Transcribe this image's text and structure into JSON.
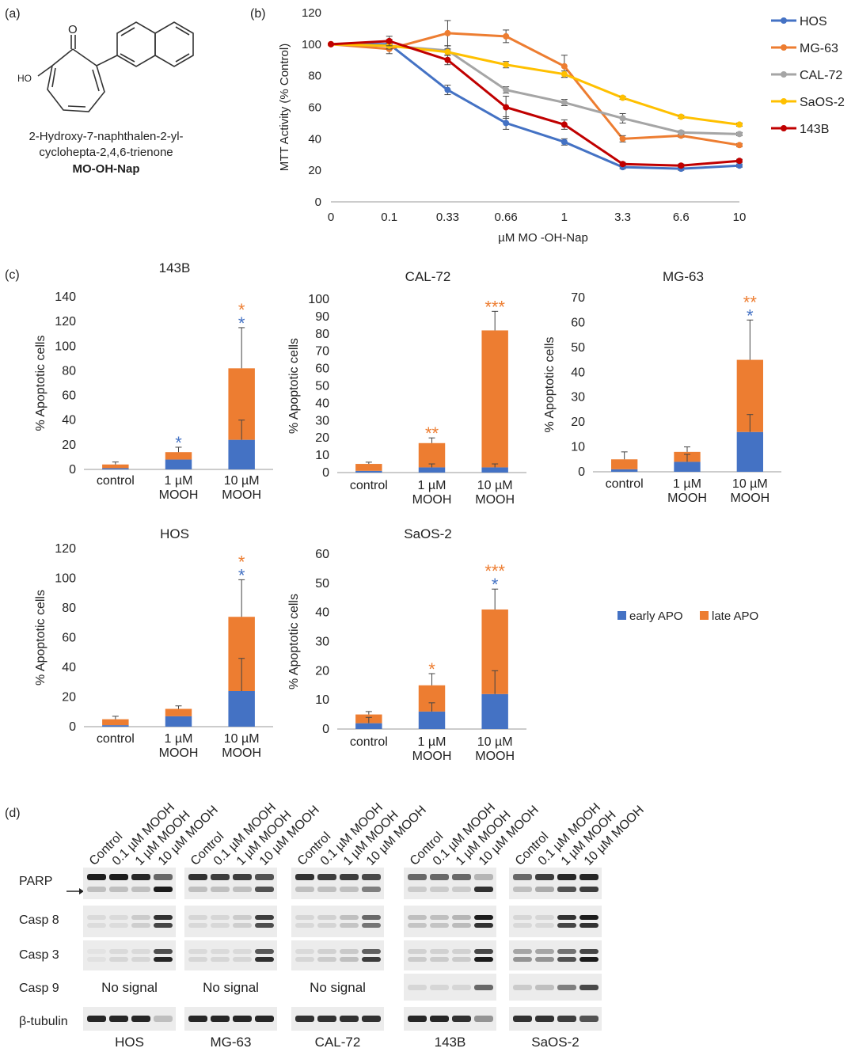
{
  "panel_labels": {
    "a": "(a)",
    "b": "(b)",
    "c": "(c)",
    "d": "(d)"
  },
  "molecule": {
    "name_line1": "2-Hydroxy-7-naphthalen-2-yl-",
    "name_line2": "cyclohepta-2,4,6-trienone",
    "code": "MO-OH-Nap",
    "ho_label": "HO",
    "o_label": "O"
  },
  "colors": {
    "HOS": "#4472C4",
    "MG-63": "#ED7D31",
    "CAL-72": "#A5A5A5",
    "SaOS-2": "#FFC000",
    "143B": "#C00000",
    "early": "#4472C4",
    "late": "#ED7D31"
  },
  "chart_data": [
    {
      "type": "line",
      "panel": "b",
      "title": "",
      "xlabel": "µM MO -OH-Nap",
      "ylabel": "MTT Activity (% Control)",
      "categories": [
        "0",
        "0.1",
        "0.33",
        "0.66",
        "1",
        "3.3",
        "6.6",
        "10"
      ],
      "ylim": [
        0,
        120
      ],
      "yticks": [
        "0",
        "20",
        "40",
        "60",
        "80",
        "100",
        "120"
      ],
      "series": [
        {
          "name": "HOS",
          "values": [
            100,
            100,
            71,
            50,
            38,
            22,
            21,
            23
          ],
          "err": [
            0,
            3,
            3,
            4,
            2,
            1,
            1,
            1
          ]
        },
        {
          "name": "MG-63",
          "values": [
            100,
            97,
            107,
            105,
            86,
            40,
            42,
            36
          ],
          "err": [
            0,
            3,
            8,
            4,
            7,
            2,
            1,
            1
          ]
        },
        {
          "name": "CAL-72",
          "values": [
            100,
            99,
            96,
            71,
            63,
            53,
            44,
            43
          ],
          "err": [
            0,
            2,
            3,
            2,
            2,
            3,
            1,
            1
          ]
        },
        {
          "name": "SaOS-2",
          "values": [
            100,
            99,
            95,
            87,
            81,
            66,
            54,
            49
          ],
          "err": [
            0,
            2,
            2,
            2,
            2,
            1,
            1,
            1
          ]
        },
        {
          "name": "143B",
          "values": [
            100,
            102,
            90,
            60,
            49,
            24,
            23,
            26
          ],
          "err": [
            0,
            3,
            3,
            7,
            3,
            1,
            1,
            1
          ]
        }
      ]
    },
    {
      "type": "bar",
      "stacked": true,
      "title": "143B",
      "ylabel": "% Apoptotic cells",
      "categories": [
        [
          "control"
        ],
        [
          "1 µM",
          "MOOH"
        ],
        [
          "10 µM",
          "MOOH"
        ]
      ],
      "ylim": [
        0,
        140
      ],
      "ytick_step": 20,
      "series": [
        {
          "name": "early APO",
          "values": [
            1,
            8,
            24
          ]
        },
        {
          "name": "late APO",
          "values": [
            3,
            6,
            58
          ]
        }
      ],
      "errors": [
        2,
        4,
        33
      ],
      "early_errors": [
        0,
        0,
        16
      ],
      "stars": [
        {
          "cat": 1,
          "lines": [
            {
              "text": "*",
              "color": "blue"
            }
          ]
        },
        {
          "cat": 2,
          "lines": [
            {
              "text": "*",
              "color": "orange"
            },
            {
              "text": "*",
              "color": "blue"
            }
          ]
        }
      ]
    },
    {
      "type": "bar",
      "stacked": true,
      "title": "CAL-72",
      "ylabel": "% Apoptotic cells",
      "categories": [
        [
          "control"
        ],
        [
          "1 µM",
          "MOOH"
        ],
        [
          "10 µM",
          "MOOH"
        ]
      ],
      "ylim": [
        0,
        100
      ],
      "ytick_step": 10,
      "series": [
        {
          "name": "early APO",
          "values": [
            1,
            3,
            3
          ]
        },
        {
          "name": "late APO",
          "values": [
            4,
            14,
            79
          ]
        }
      ],
      "errors": [
        1,
        3,
        11
      ],
      "early_errors": [
        0,
        2,
        2
      ],
      "stars": [
        {
          "cat": 1,
          "lines": [
            {
              "text": "**",
              "color": "orange"
            }
          ]
        },
        {
          "cat": 2,
          "lines": [
            {
              "text": "***",
              "color": "orange"
            }
          ]
        }
      ]
    },
    {
      "type": "bar",
      "stacked": true,
      "title": "MG-63",
      "ylabel": "% Apoptotic cells",
      "categories": [
        [
          "control"
        ],
        [
          "1 µM",
          "MOOH"
        ],
        [
          "10 µM",
          "MOOH"
        ]
      ],
      "ylim": [
        0,
        70
      ],
      "ytick_step": 10,
      "series": [
        {
          "name": "early APO",
          "values": [
            1,
            4,
            16
          ]
        },
        {
          "name": "late APO",
          "values": [
            4,
            4,
            29
          ]
        }
      ],
      "errors": [
        3,
        2,
        16
      ],
      "early_errors": [
        0,
        3,
        7
      ],
      "stars": [
        {
          "cat": 2,
          "lines": [
            {
              "text": "**",
              "color": "orange"
            },
            {
              "text": "*",
              "color": "blue"
            }
          ]
        }
      ]
    },
    {
      "type": "bar",
      "stacked": true,
      "title": "HOS",
      "ylabel": "% Apoptotic cells",
      "categories": [
        [
          "control"
        ],
        [
          "1 µM",
          "MOOH"
        ],
        [
          "10 µM",
          "MOOH"
        ]
      ],
      "ylim": [
        0,
        120
      ],
      "ytick_step": 20,
      "series": [
        {
          "name": "early APO",
          "values": [
            1,
            7,
            24
          ]
        },
        {
          "name": "late APO",
          "values": [
            4,
            5,
            50
          ]
        }
      ],
      "errors": [
        2,
        2,
        25
      ],
      "early_errors": [
        0,
        0,
        22
      ],
      "stars": [
        {
          "cat": 2,
          "lines": [
            {
              "text": "*",
              "color": "orange"
            },
            {
              "text": "*",
              "color": "blue"
            }
          ]
        }
      ]
    },
    {
      "type": "bar",
      "stacked": true,
      "title": "SaOS-2",
      "ylabel": "% Apoptotic cells",
      "categories": [
        [
          "control"
        ],
        [
          "1 µM",
          "MOOH"
        ],
        [
          "10 µM",
          "MOOH"
        ]
      ],
      "ylim": [
        0,
        60
      ],
      "ytick_step": 10,
      "series": [
        {
          "name": "early APO",
          "values": [
            2,
            6,
            12
          ]
        },
        {
          "name": "late APO",
          "values": [
            3,
            9,
            29
          ]
        }
      ],
      "errors": [
        1,
        4,
        7
      ],
      "early_errors": [
        2,
        3,
        8
      ],
      "stars": [
        {
          "cat": 1,
          "lines": [
            {
              "text": "*",
              "color": "orange"
            }
          ]
        },
        {
          "cat": 2,
          "lines": [
            {
              "text": "***",
              "color": "orange"
            },
            {
              "text": "*",
              "color": "blue"
            }
          ]
        }
      ]
    }
  ],
  "bar_legend": {
    "early": "early APO",
    "late": "late APO"
  },
  "western": {
    "lane_labels": [
      "Control",
      "0.1 µM MOOH",
      "1 µM MOOH",
      "10 µM MOOH"
    ],
    "row_labels": [
      "PARP",
      "Casp 8",
      "Casp 3",
      "Casp 9",
      "β-tubulin"
    ],
    "no_signal": "No signal",
    "cell_lines": [
      "HOS",
      "MG-63",
      "CAL-72",
      "143B",
      "SaOS-2"
    ]
  }
}
